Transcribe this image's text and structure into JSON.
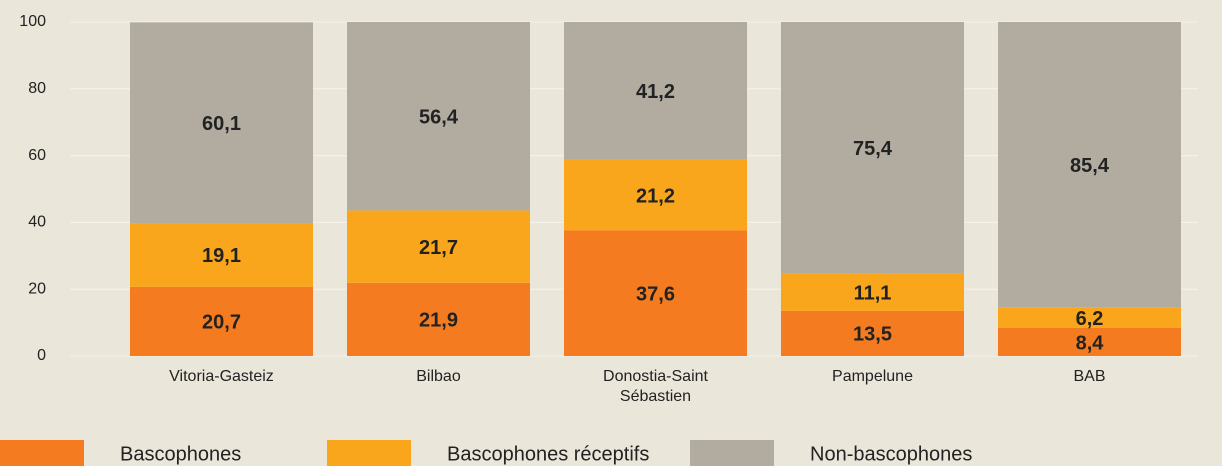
{
  "chart_data": {
    "type": "stacked_bar",
    "categories": [
      "Vitoria-Gasteiz",
      "Bilbao",
      "Donostia-Saint Sébastien",
      "Pampelune",
      "BAB"
    ],
    "series": [
      {
        "name": "Bascophones",
        "color": "#f47b20",
        "values": [
          20.7,
          21.9,
          37.6,
          13.5,
          8.4
        ],
        "value_labels": [
          "20,7",
          "21,9",
          "37,6",
          "13,5",
          "8,4"
        ]
      },
      {
        "name": "Bascophones réceptifs",
        "color": "#f9a61c",
        "values": [
          19.1,
          21.7,
          21.2,
          11.1,
          6.2
        ],
        "value_labels": [
          "19,1",
          "21,7",
          "21,2",
          "11,1",
          "6,2"
        ]
      },
      {
        "name": "Non-bascophones",
        "color": "#b2aca0",
        "values": [
          60.1,
          56.4,
          41.2,
          75.4,
          85.4
        ],
        "value_labels": [
          "60,1",
          "56,4",
          "41,2",
          "75,4",
          "85,4"
        ]
      }
    ],
    "ylim": [
      0,
      100
    ],
    "yticks": [
      0,
      20,
      40,
      60,
      80,
      100
    ],
    "grid": true,
    "legend": "bottom"
  }
}
